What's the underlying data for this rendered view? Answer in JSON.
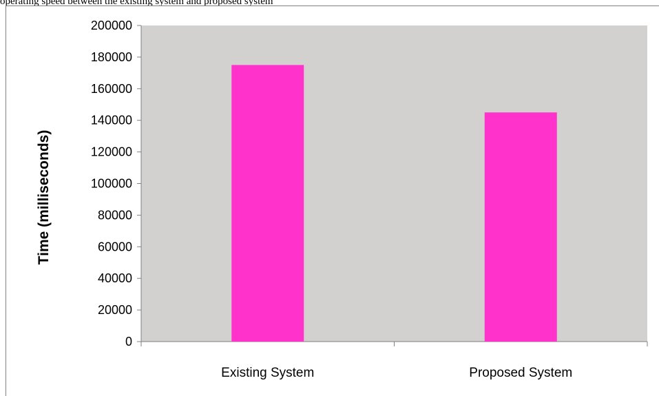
{
  "caption_fragment": "operating speed between the existing system and proposed system",
  "chart_data": {
    "type": "bar",
    "categories": [
      "Existing System",
      "Proposed System"
    ],
    "series": [
      {
        "values": [
          175000,
          145000
        ]
      }
    ],
    "title": "",
    "xlabel": "",
    "ylabel": "Time (milliseconds)",
    "ylim": [
      0,
      200000
    ],
    "yticks": [
      0,
      20000,
      40000,
      60000,
      80000,
      100000,
      120000,
      140000,
      160000,
      180000,
      200000
    ],
    "grid": false,
    "legend": "none",
    "colors": {
      "bar": "#ff33cc",
      "plot_area": "#d3d0d0",
      "axis": "#7f7f7f"
    }
  }
}
